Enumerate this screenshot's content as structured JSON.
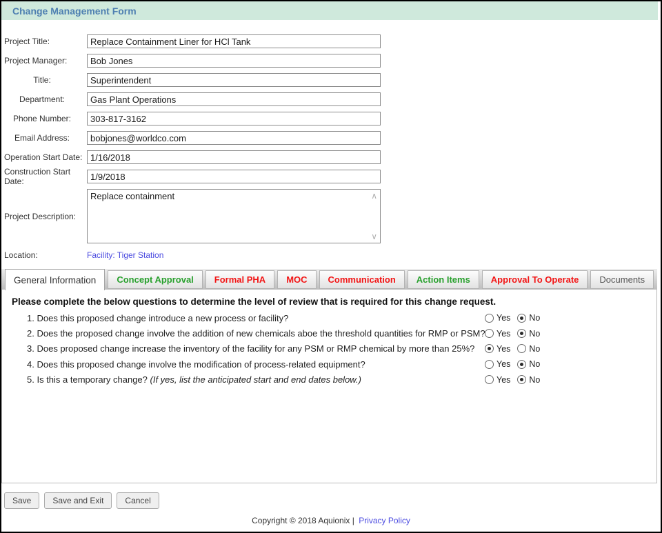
{
  "header": {
    "title": "Change Management Form"
  },
  "colors": {
    "header_bg": "#cfe9dc",
    "header_text": "#4e7fb1",
    "link": "#4b4be0",
    "tab_green": "#28a02d",
    "tab_red": "#f21515",
    "tab_active_text": "#333333",
    "tab_gray": "#555555"
  },
  "form": {
    "fields": [
      {
        "name": "project-title",
        "label": "Project Title:",
        "value": "Replace Containment Liner for HCl Tank",
        "indent": false
      },
      {
        "name": "project-manager",
        "label": "Project Manager:",
        "value": "Bob Jones",
        "indent": false
      },
      {
        "name": "manager-title",
        "label": "Title:",
        "value": "Superintendent",
        "indent": true
      },
      {
        "name": "department",
        "label": "Department:",
        "value": "Gas Plant Operations",
        "indent": true
      },
      {
        "name": "phone-number",
        "label": "Phone Number:",
        "value": "303-817-3162",
        "indent": true
      },
      {
        "name": "email-address",
        "label": "Email Address:",
        "value": "bobjones@worldco.com",
        "indent": true
      },
      {
        "name": "operation-start-date",
        "label": "Operation Start Date:",
        "value": "1/16/2018",
        "indent": false
      },
      {
        "name": "construction-start-date",
        "label": "Construction Start Date:",
        "value": "1/9/2018",
        "indent": false
      }
    ],
    "description": {
      "label": "Project Description:",
      "value": "Replace containment"
    },
    "location": {
      "label": "Location:",
      "link_text": "Facility: Tiger Station"
    }
  },
  "tabs": [
    {
      "label": "General Information",
      "state": "active",
      "color": "#333333"
    },
    {
      "label": "Concept Approval",
      "state": "inactive",
      "color": "#28a02d"
    },
    {
      "label": "Formal PHA",
      "state": "inactive",
      "color": "#f21515"
    },
    {
      "label": "MOC",
      "state": "inactive",
      "color": "#f21515"
    },
    {
      "label": "Communication",
      "state": "inactive",
      "color": "#f21515"
    },
    {
      "label": "Action Items",
      "state": "inactive",
      "color": "#28a02d"
    },
    {
      "label": "Approval To Operate",
      "state": "inactive",
      "color": "#f21515"
    },
    {
      "label": "Documents",
      "state": "inactive",
      "color": "#555555",
      "plain": true
    }
  ],
  "questions": {
    "intro": "Please complete the below questions to determine the level of review that is required for this change request.",
    "yes_label": "Yes",
    "no_label": "No",
    "items": [
      {
        "number": "1.",
        "text": "Does this proposed change introduce a new process or facility?",
        "italic": "",
        "answer": "No"
      },
      {
        "number": "2.",
        "text": "Does the proposed change involve the addition of new chemicals aboe the threshold quantities for RMP or PSM?",
        "italic": "",
        "answer": "No"
      },
      {
        "number": "3.",
        "text": "Does proposed change increase the inventory of the facility for any PSM or RMP chemical by more than 25%?",
        "italic": "",
        "answer": "Yes"
      },
      {
        "number": "4.",
        "text": "Does this proposed change involve the modification of process-related equipment?",
        "italic": "",
        "answer": "No"
      },
      {
        "number": "5.",
        "text": "Is this a temporary change?",
        "italic": "(If yes, list the anticipated start and end dates below.)",
        "answer": "No"
      }
    ]
  },
  "buttons": [
    {
      "label": "Save"
    },
    {
      "label": "Save and Exit"
    },
    {
      "label": "Cancel"
    }
  ],
  "footer": {
    "text": "Copyright © 2018 Aquionix |",
    "link": "Privacy Policy"
  }
}
